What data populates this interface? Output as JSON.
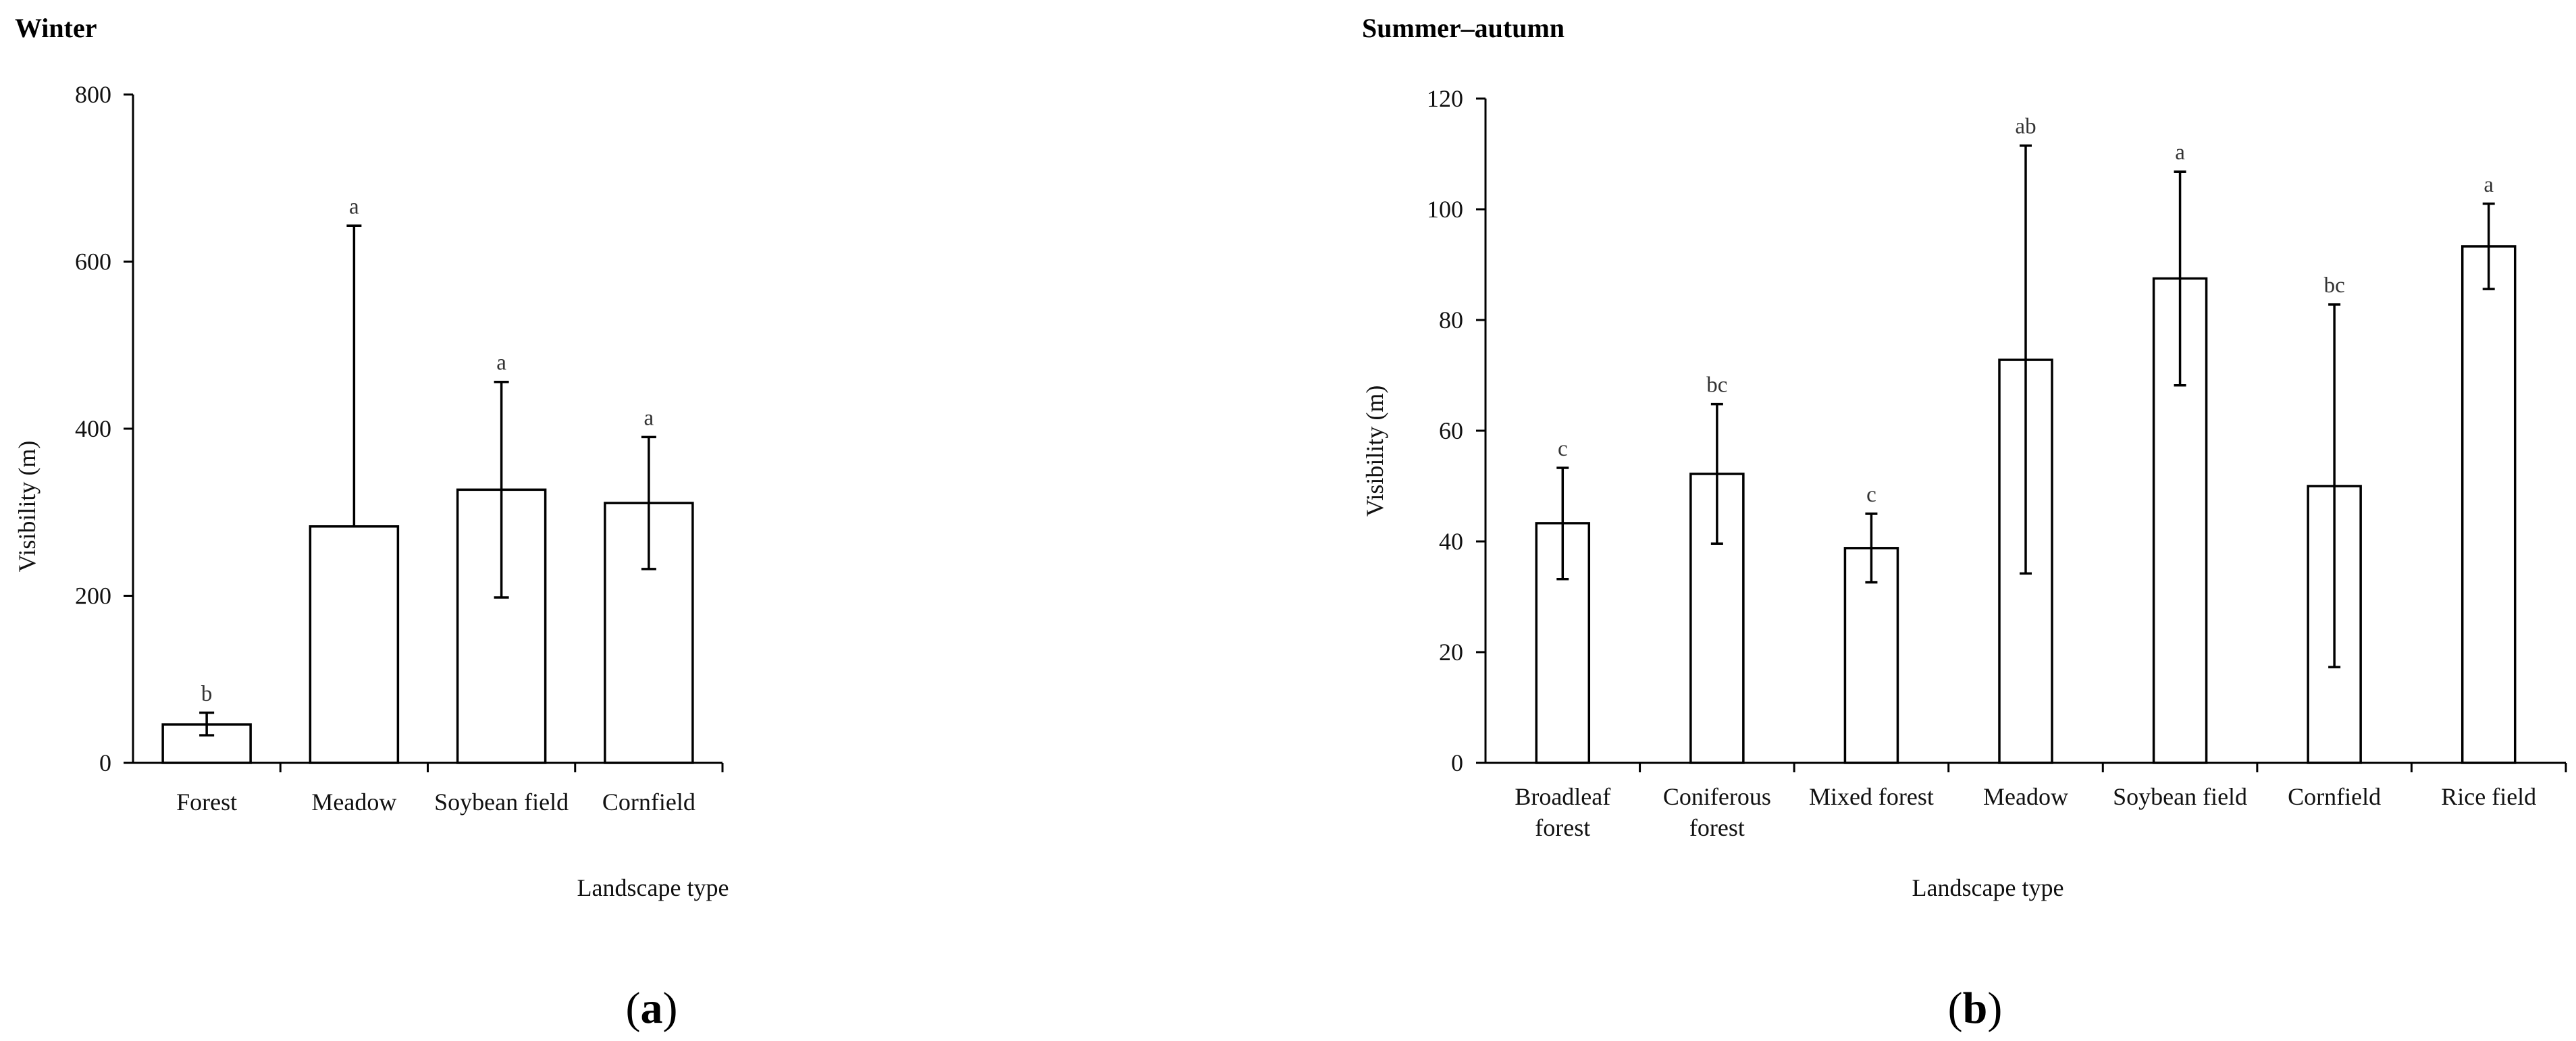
{
  "chart_data": [
    {
      "type": "bar",
      "title": "Winter",
      "xlabel": "Landscape type",
      "ylabel": "Visibility (m)",
      "ylim": [
        0,
        800
      ],
      "yticks": [
        0,
        200,
        400,
        600,
        800
      ],
      "categories": [
        [
          "Forest"
        ],
        [
          "Meadow"
        ],
        [
          "Soybean field"
        ],
        [
          "Cornfield"
        ]
      ],
      "values": [
        46,
        283,
        327,
        311
      ],
      "error_high": [
        60,
        643,
        456,
        390
      ],
      "error_low": [
        33,
        283,
        198,
        232
      ],
      "significance": [
        "b",
        "a",
        "a",
        "a"
      ],
      "panel_label": "a"
    },
    {
      "type": "bar",
      "title": "Summer–autumn",
      "xlabel": "Landscape type",
      "ylabel": "Visibility (m)",
      "ylim": [
        0,
        120
      ],
      "yticks": [
        0,
        20,
        40,
        60,
        80,
        100,
        120
      ],
      "categories": [
        [
          "Broadleaf",
          "forest"
        ],
        [
          "Coniferous",
          "forest"
        ],
        [
          "Mixed forest"
        ],
        [
          "Meadow"
        ],
        [
          "Soybean field"
        ],
        [
          "Cornfield"
        ],
        [
          "Rice field"
        ]
      ],
      "values": [
        43.3,
        52.2,
        38.8,
        72.8,
        87.5,
        50.0,
        93.3
      ],
      "error_high": [
        53.3,
        64.8,
        45.0,
        111.5,
        106.8,
        82.8,
        101.0
      ],
      "error_low": [
        33.2,
        39.6,
        32.6,
        34.2,
        68.2,
        17.3,
        85.6
      ],
      "significance": [
        "c",
        "bc",
        "c",
        "ab",
        "a",
        "bc",
        "a"
      ],
      "panel_label": "b"
    }
  ]
}
